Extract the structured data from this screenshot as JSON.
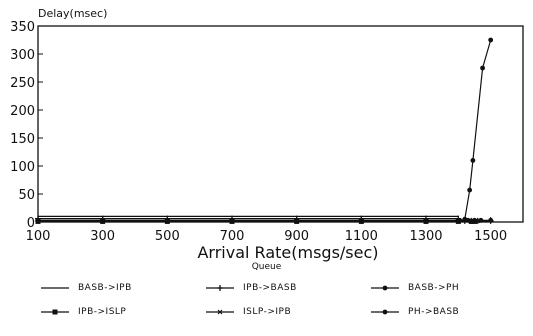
{
  "chart_data": {
    "type": "line",
    "ylabel": "Delay(msec)",
    "xlabel": "Arrival Rate(msgs/sec)",
    "x_ticks": [
      "100",
      "300",
      "500",
      "700",
      "900",
      "1100",
      "1300",
      "1500"
    ],
    "y_ticks": [
      "0",
      "50",
      "100",
      "150",
      "200",
      "250",
      "300",
      "350"
    ],
    "xlim": [
      100,
      1600
    ],
    "ylim": [
      0,
      350
    ],
    "legend_title": "Queue",
    "series": [
      {
        "name": "BASB->IPB",
        "marker": "none",
        "x": [
          100,
          300,
          500,
          700,
          900,
          1100,
          1300,
          1400
        ],
        "y": [
          10,
          10,
          10,
          10,
          10,
          10,
          10,
          10
        ]
      },
      {
        "name": "IPB->BASB",
        "marker": "plus",
        "x": [
          100,
          300,
          500,
          700,
          900,
          1100,
          1300,
          1400,
          1420,
          1440,
          1460,
          1500
        ],
        "y": [
          6,
          6,
          6,
          6,
          6,
          6,
          6,
          6,
          2,
          2,
          2,
          2
        ]
      },
      {
        "name": "BASB->PH",
        "marker": "dot",
        "x": [
          100,
          300,
          500,
          700,
          900,
          1100,
          1300,
          1400,
          1430,
          1450,
          1470,
          1500
        ],
        "y": [
          3,
          3,
          3,
          3,
          3,
          3,
          3,
          3,
          3,
          3,
          3,
          3
        ]
      },
      {
        "name": "IPB->ISLP",
        "marker": "square",
        "x": [
          100,
          300,
          500,
          700,
          900,
          1100,
          1300,
          1400,
          1440,
          1450
        ],
        "y": [
          1,
          1,
          1,
          1,
          1,
          1,
          1,
          1,
          1,
          1
        ]
      },
      {
        "name": "ISLP->IPB",
        "marker": "star",
        "x": [
          100,
          300,
          500,
          700,
          900,
          1100,
          1300,
          1400,
          1440,
          1460
        ],
        "y": [
          2,
          2,
          2,
          2,
          2,
          2,
          2,
          2,
          2,
          2
        ]
      },
      {
        "name": "PH->BASB",
        "marker": "dot",
        "x": [
          1420,
          1435,
          1445,
          1475,
          1500
        ],
        "y": [
          5,
          57,
          110,
          275,
          325
        ]
      }
    ]
  }
}
